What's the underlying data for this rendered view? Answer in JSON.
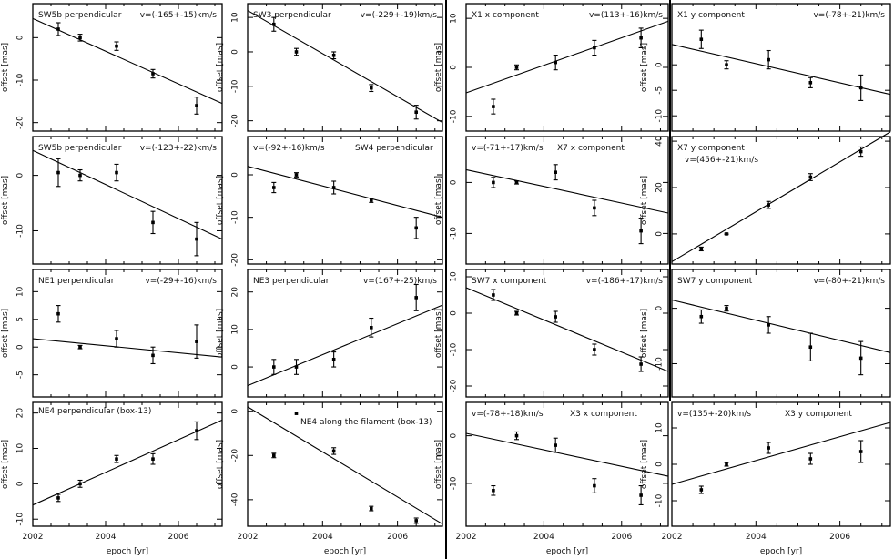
{
  "figure": {
    "x_axis_label": "epoch [yr]",
    "y_axis_label": "offset [mas]",
    "xlim": [
      2002,
      2007.2
    ]
  },
  "chart_data": [
    {
      "id": "p1",
      "type": "scatter",
      "title": "SW5b perpendicular",
      "annotation": "v=(-165+-15)km/s",
      "ylim": [
        -22,
        8
      ],
      "yticks": [
        0,
        -10,
        -20
      ],
      "xticks": [],
      "x": [
        2002.7,
        2003.3,
        2004.3,
        2005.3,
        2006.5
      ],
      "y": [
        2.0,
        0.0,
        -2.0,
        -8.5,
        -16.0
      ],
      "yerr": [
        1.5,
        0.8,
        1.0,
        1.0,
        2.0
      ],
      "fit": [
        [
          2002,
          4.5
        ],
        [
          2007.2,
          -15.5
        ]
      ]
    },
    {
      "id": "p2",
      "type": "scatter",
      "title": "SW3 perpendicular",
      "annotation": "v=(-229+-19)km/s",
      "ylim": [
        -23,
        14
      ],
      "yticks": [
        10,
        0,
        -10,
        -20
      ],
      "xticks": [],
      "x": [
        2002.7,
        2003.3,
        2004.3,
        2005.3,
        2006.5
      ],
      "y": [
        8.0,
        0.0,
        -1.0,
        -10.5,
        -17.5
      ],
      "yerr": [
        2.0,
        1.0,
        1.0,
        1.0,
        2.0
      ],
      "fit": [
        [
          2002,
          12.0
        ],
        [
          2007.2,
          -20.5
        ]
      ]
    },
    {
      "id": "p3",
      "type": "scatter",
      "title": "X1 x component",
      "annotation": "v=(113+-16)km/s",
      "ylim": [
        -13,
        13
      ],
      "yticks": [
        10,
        0,
        -10
      ],
      "xticks": [],
      "x": [
        2002.7,
        2003.3,
        2004.3,
        2005.3,
        2006.5
      ],
      "y": [
        -8.0,
        0.0,
        1.0,
        4.0,
        6.0
      ],
      "yerr": [
        1.5,
        0.5,
        1.5,
        1.5,
        2.0
      ],
      "fit": [
        [
          2002,
          -5.2
        ],
        [
          2007.2,
          9.4
        ]
      ]
    },
    {
      "id": "p4",
      "type": "scatter",
      "title": "X1 y component",
      "annotation": "v=(-78+-21)km/s",
      "ylim": [
        -13,
        12
      ],
      "yticks": [
        0,
        -5,
        -10
      ],
      "xticks": [],
      "x": [
        2002.7,
        2003.3,
        2004.3,
        2005.3,
        2006.5
      ],
      "y": [
        5.0,
        0.0,
        1.0,
        -3.5,
        -4.5
      ],
      "yerr": [
        1.8,
        0.8,
        1.8,
        1.0,
        2.5
      ],
      "fit": [
        [
          2002,
          4.0
        ],
        [
          2007.2,
          -5.8
        ]
      ]
    },
    {
      "id": "p5",
      "type": "scatter",
      "title": "SW5b perpendicular",
      "annotation": "v=(-123+-22)km/s",
      "ylim": [
        -16,
        7
      ],
      "yticks": [
        0,
        -10
      ],
      "xticks": [],
      "x": [
        2002.7,
        2003.3,
        2004.3,
        2005.3,
        2006.5
      ],
      "y": [
        0.5,
        0.0,
        0.5,
        -8.5,
        -11.5
      ],
      "yerr": [
        2.5,
        1.0,
        1.5,
        2.0,
        3.0
      ],
      "fit": [
        [
          2002,
          4.5
        ],
        [
          2007.2,
          -11.5
        ]
      ]
    },
    {
      "id": "p6",
      "type": "scatter",
      "title": "SW4 perpendicular",
      "annotation": "v=(-92+-16)km/s",
      "ylim": [
        -21,
        9
      ],
      "yticks": [
        0,
        -10,
        -20
      ],
      "xticks": [],
      "x": [
        2002.7,
        2003.3,
        2004.3,
        2005.3,
        2006.5
      ],
      "y": [
        -3.0,
        0.0,
        -3.0,
        -6.0,
        -12.5
      ],
      "yerr": [
        1.2,
        0.5,
        1.5,
        0.5,
        2.5
      ],
      "fit": [
        [
          2002,
          2.0
        ],
        [
          2007.2,
          -10.0
        ]
      ]
    },
    {
      "id": "p7",
      "type": "scatter",
      "title": "X7 x component",
      "annotation": "v=(-71+-17)km/s",
      "ylim": [
        -16,
        9
      ],
      "yticks": [
        0,
        -10
      ],
      "xticks": [],
      "x": [
        2002.7,
        2003.3,
        2004.3,
        2005.3,
        2006.5
      ],
      "y": [
        0.0,
        0.0,
        2.0,
        -5.0,
        -9.5
      ],
      "yerr": [
        1.0,
        0.3,
        1.5,
        1.5,
        2.5
      ],
      "fit": [
        [
          2002,
          2.5
        ],
        [
          2007.2,
          -6.0
        ]
      ]
    },
    {
      "id": "p8",
      "type": "scatter",
      "title": "X7 y component",
      "annotation": "v=(456+-21)km/s",
      "ylim": [
        -13,
        42
      ],
      "yticks": [
        40,
        20,
        0
      ],
      "xticks": [],
      "x": [
        2002.7,
        2003.3,
        2004.3,
        2005.3,
        2006.5
      ],
      "y": [
        -6.5,
        0.0,
        12.5,
        24.5,
        35.5
      ],
      "yerr": [
        0.8,
        0.3,
        1.5,
        1.5,
        2.0
      ],
      "fit": [
        [
          2002,
          -12.0
        ],
        [
          2007.2,
          44.0
        ]
      ]
    },
    {
      "id": "p9",
      "type": "scatter",
      "title": "NE1 perpendicular",
      "annotation": "v=(-29+-16)km/s",
      "ylim": [
        -9,
        14
      ],
      "yticks": [
        10,
        5,
        0,
        -5
      ],
      "xticks": [],
      "x": [
        2002.7,
        2003.3,
        2004.3,
        2005.3,
        2006.5
      ],
      "y": [
        6.0,
        0.0,
        1.5,
        -1.5,
        1.0
      ],
      "yerr": [
        1.5,
        0.3,
        1.5,
        1.5,
        3.0
      ],
      "fit": [
        [
          2002,
          1.5
        ],
        [
          2007.2,
          -1.8
        ]
      ]
    },
    {
      "id": "p10",
      "type": "scatter",
      "title": "NE3 perpendicular",
      "annotation": "v=(167+-25)km/s",
      "ylim": [
        -8,
        26
      ],
      "yticks": [
        20,
        10,
        0
      ],
      "xticks": [],
      "x": [
        2002.7,
        2003.3,
        2004.3,
        2005.3,
        2006.5
      ],
      "y": [
        0.0,
        0.0,
        2.0,
        10.5,
        18.5
      ],
      "yerr": [
        2.0,
        2.0,
        2.0,
        2.5,
        3.5
      ],
      "fit": [
        [
          2002,
          -5.0
        ],
        [
          2007.2,
          16.5
        ]
      ]
    },
    {
      "id": "p11",
      "type": "scatter",
      "title": "SW7 x component",
      "annotation": "v=(-186+-17)km/s",
      "ylim": [
        -23,
        12
      ],
      "yticks": [
        10,
        0,
        -10,
        -20
      ],
      "xticks": [],
      "x": [
        2002.7,
        2003.3,
        2004.3,
        2005.3,
        2006.5
      ],
      "y": [
        5.0,
        0.0,
        -1.0,
        -10.0,
        -14.0
      ],
      "yerr": [
        1.5,
        0.5,
        1.5,
        1.5,
        2.0
      ],
      "fit": [
        [
          2002,
          7.0
        ],
        [
          2007.2,
          -16.0
        ]
      ]
    },
    {
      "id": "p12",
      "type": "scatter",
      "title": "SW7 y component",
      "annotation": "v=(-80+-21)km/s",
      "ylim": [
        -16,
        7
      ],
      "yticks": [
        0,
        -10
      ],
      "xticks": [],
      "x": [
        2002.7,
        2003.3,
        2004.3,
        2005.3,
        2006.5
      ],
      "y": [
        -1.5,
        0.0,
        -3.0,
        -7.0,
        -9.0
      ],
      "yerr": [
        1.2,
        0.5,
        1.5,
        2.5,
        3.0
      ],
      "fit": [
        [
          2002,
          1.5
        ],
        [
          2007.2,
          -8.0
        ]
      ]
    },
    {
      "id": "p13",
      "type": "scatter",
      "title": "NE4 perpendicular (box-13)",
      "annotation": "",
      "ylim": [
        -12,
        23
      ],
      "yticks": [
        20,
        10,
        0,
        -10
      ],
      "xticks": [
        2002,
        2004,
        2006
      ],
      "x": [
        2002.7,
        2003.3,
        2004.3,
        2005.3,
        2006.5
      ],
      "y": [
        -4.0,
        0.0,
        7.0,
        7.0,
        15.0
      ],
      "yerr": [
        1.0,
        1.0,
        1.0,
        1.5,
        2.5
      ],
      "fit": [
        [
          2002,
          -6.0
        ],
        [
          2007.2,
          18.0
        ]
      ]
    },
    {
      "id": "p14",
      "type": "scatter",
      "title": "NE4 along the filament (box-13)",
      "annotation": "",
      "ylim": [
        -52,
        4
      ],
      "yticks": [
        0,
        -20,
        -40
      ],
      "xticks": [
        2002,
        2004,
        2006
      ],
      "x": [
        2002.7,
        2003.3,
        2004.3,
        2005.3,
        2006.5
      ],
      "y": [
        -20.0,
        null,
        -18.0,
        -44.0,
        -49.5
      ],
      "yerr": [
        1.0,
        null,
        1.5,
        1.0,
        1.2
      ],
      "fit": [
        [
          2002,
          2.0
        ],
        [
          2007.2,
          -51.0
        ]
      ],
      "legend_marker": {
        "x": 2003.3,
        "y": -1.0
      }
    },
    {
      "id": "p15",
      "type": "scatter",
      "title": "X3 x component",
      "annotation": "v=(-78+-18)km/s",
      "ylim": [
        -19,
        7
      ],
      "yticks": [
        0,
        -10
      ],
      "xticks": [
        2002,
        2004,
        2006
      ],
      "x": [
        2002.7,
        2003.3,
        2004.3,
        2005.3,
        2006.5
      ],
      "y": [
        -11.5,
        0.0,
        -2.0,
        -10.5,
        -12.5
      ],
      "yerr": [
        1.0,
        0.8,
        1.5,
        1.5,
        2.0
      ],
      "fit": [
        [
          2002,
          0.5
        ],
        [
          2007.2,
          -8.5
        ]
      ]
    },
    {
      "id": "p16",
      "type": "scatter",
      "title": "X3 y component",
      "annotation": "v=(135+-20)km/s",
      "ylim": [
        -17,
        17
      ],
      "yticks": [
        10,
        0,
        -10
      ],
      "xticks": [
        2002,
        2004,
        2006
      ],
      "x": [
        2002.7,
        2003.3,
        2004.3,
        2005.3,
        2006.5
      ],
      "y": [
        -7.0,
        0.0,
        4.5,
        1.5,
        3.5
      ],
      "yerr": [
        1.0,
        0.5,
        1.5,
        1.5,
        3.0
      ],
      "fit": [
        [
          2002,
          -5.5
        ],
        [
          2007.2,
          11.5
        ]
      ]
    }
  ]
}
